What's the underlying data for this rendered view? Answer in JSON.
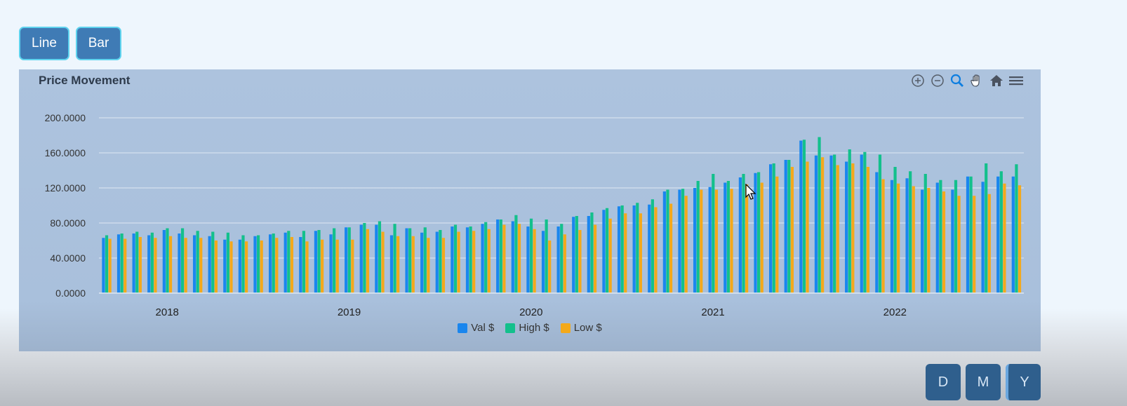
{
  "view_buttons": {
    "line": "Line",
    "bar": "Bar"
  },
  "period_buttons": {
    "day": "D",
    "month": "M",
    "year": "Y"
  },
  "toolbar_icons": [
    "zoom-in-icon",
    "zoom-out-icon",
    "zoom-select-icon",
    "pan-hand-icon",
    "reset-home-icon",
    "menu-icon"
  ],
  "colors": {
    "val": "#1a86ee",
    "high": "#13c08c",
    "low": "#f3a91b",
    "accent": "#3f7bb5"
  },
  "chart_data": {
    "type": "bar",
    "title": "Price Movement",
    "xlabel": "",
    "ylabel": "",
    "ylim": [
      0,
      200
    ],
    "yticks": [
      "0.0000",
      "40.0000",
      "80.0000",
      "120.0000",
      "160.0000",
      "200.0000"
    ],
    "xticks": [
      "2018",
      "2019",
      "2020",
      "2021",
      "2022"
    ],
    "grid": true,
    "legend_position": "bottom",
    "categories": [
      "2017-09",
      "2017-10",
      "2017-11",
      "2017-12",
      "2018-01",
      "2018-02",
      "2018-03",
      "2018-04",
      "2018-05",
      "2018-06",
      "2018-07",
      "2018-08",
      "2018-09",
      "2018-10",
      "2018-11",
      "2018-12",
      "2019-01",
      "2019-02",
      "2019-03",
      "2019-04",
      "2019-05",
      "2019-06",
      "2019-07",
      "2019-08",
      "2019-09",
      "2019-10",
      "2019-11",
      "2019-12",
      "2020-01",
      "2020-02",
      "2020-03",
      "2020-04",
      "2020-05",
      "2020-06",
      "2020-07",
      "2020-08",
      "2020-09",
      "2020-10",
      "2020-11",
      "2020-12",
      "2021-01",
      "2021-02",
      "2021-03",
      "2021-04",
      "2021-05",
      "2021-06",
      "2021-07",
      "2021-08",
      "2021-09",
      "2021-10",
      "2021-11",
      "2021-12",
      "2022-01",
      "2022-02",
      "2022-03",
      "2022-04",
      "2022-05",
      "2022-06",
      "2022-07",
      "2022-08",
      "2022-09"
    ],
    "series": [
      {
        "name": "Val $",
        "values": [
          63,
          67,
          68,
          66,
          72,
          68,
          66,
          65,
          61,
          61,
          65,
          67,
          69,
          64,
          71,
          67,
          75,
          78,
          78,
          66,
          74,
          69,
          70,
          76,
          75,
          79,
          84,
          82,
          76,
          71,
          76,
          87,
          88,
          95,
          99,
          100,
          101,
          116,
          118,
          120,
          121,
          126,
          132,
          137,
          147,
          152,
          174,
          157,
          157,
          150,
          158,
          138,
          129,
          131,
          118,
          126,
          118,
          133,
          127,
          133,
          133
        ]
      },
      {
        "name": "High $",
        "values": [
          66,
          68,
          70,
          69,
          74,
          74,
          71,
          70,
          69,
          66,
          66,
          68,
          71,
          71,
          72,
          74,
          75,
          80,
          82,
          79,
          74,
          75,
          72,
          78,
          76,
          81,
          84,
          89,
          85,
          84,
          79,
          88,
          92,
          97,
          100,
          103,
          107,
          118,
          119,
          128,
          136,
          128,
          136,
          138,
          148,
          152,
          175,
          178,
          158,
          164,
          161,
          158,
          144,
          139,
          136,
          129,
          129,
          133,
          148,
          139,
          147
        ]
      },
      {
        "name": "Low $",
        "values": [
          62,
          62,
          64,
          63,
          65,
          63,
          63,
          60,
          59,
          59,
          60,
          63,
          64,
          59,
          61,
          61,
          61,
          73,
          70,
          65,
          65,
          63,
          63,
          70,
          71,
          73,
          78,
          79,
          73,
          60,
          67,
          72,
          78,
          85,
          91,
          91,
          98,
          102,
          111,
          118,
          118,
          119,
          124,
          126,
          133,
          144,
          150,
          155,
          146,
          148,
          144,
          130,
          125,
          122,
          120,
          116,
          111,
          111,
          113,
          125,
          123
        ]
      }
    ]
  },
  "chart_title": "Price Movement"
}
